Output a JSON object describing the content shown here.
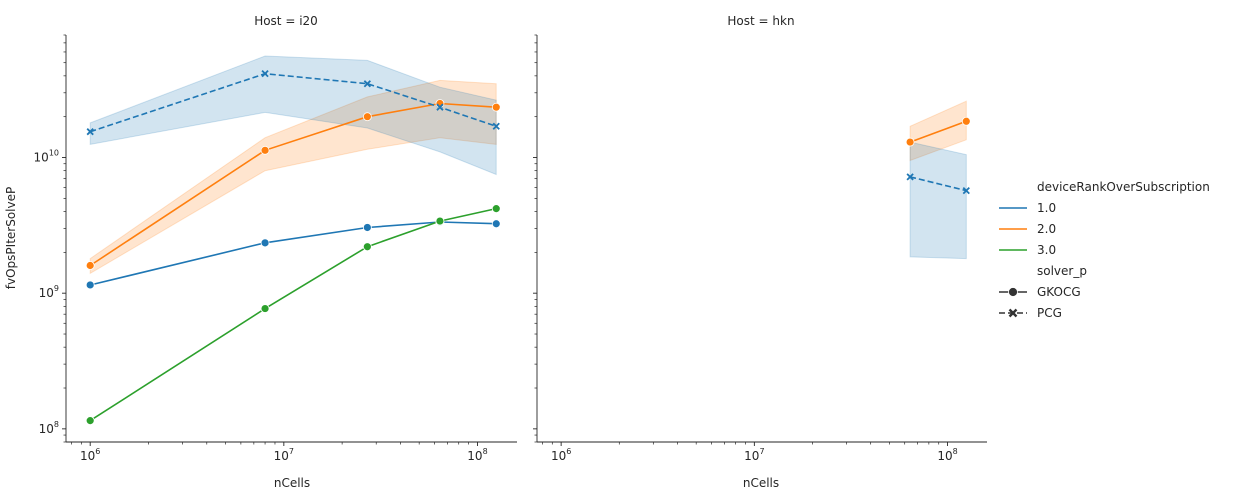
{
  "chart_data": [
    {
      "type": "line",
      "title": "Host = i20",
      "xlabel": "nCells",
      "ylabel": "fvOpsPIterSolveP",
      "xscale": "log",
      "yscale": "log",
      "xlim": [
        750000,
        160000000
      ],
      "ylim": [
        80000000,
        80000000000
      ],
      "x_ticks": [
        {
          "value": 1000000,
          "base": "10",
          "exp": "6"
        },
        {
          "value": 10000000,
          "base": "10",
          "exp": "7"
        },
        {
          "value": 100000000,
          "base": "10",
          "exp": "8"
        }
      ],
      "y_ticks": [
        {
          "value": 100000000,
          "base": "10",
          "exp": "8"
        },
        {
          "value": 1000000000,
          "base": "10",
          "exp": "9"
        },
        {
          "value": 10000000000,
          "base": "10",
          "exp": "10"
        }
      ],
      "series": [
        {
          "deviceRankOverSubscription": "1.0",
          "solver_p": "GKOCG",
          "x": [
            1000000,
            8000000,
            27000000,
            64000000,
            125000000
          ],
          "y": [
            1150000000,
            2350000000,
            3050000000,
            3350000000,
            3250000000
          ]
        },
        {
          "deviceRankOverSubscription": "2.0",
          "solver_p": "GKOCG",
          "x": [
            1000000,
            8000000,
            27000000,
            64000000,
            125000000
          ],
          "y": [
            1600000000,
            11300000000,
            20000000000,
            25000000000,
            23500000000
          ],
          "band_low": [
            1400000000,
            8000000000,
            11500000000,
            14000000000,
            12500000000
          ],
          "band_high": [
            1800000000,
            14000000000,
            28000000000,
            37000000000,
            35000000000
          ]
        },
        {
          "deviceRankOverSubscription": "3.0",
          "solver_p": "GKOCG",
          "x": [
            1000000,
            8000000,
            27000000,
            64000000,
            125000000
          ],
          "y": [
            115000000,
            770000000,
            2200000000,
            3400000000,
            4200000000
          ]
        },
        {
          "deviceRankOverSubscription": "1.0",
          "solver_p": "PCG",
          "x": [
            1000000,
            8000000,
            27000000,
            64000000,
            125000000
          ],
          "y": [
            15500000000,
            41500000000,
            35000000000,
            23500000000,
            17000000000
          ],
          "band_low": [
            12500000000,
            21500000000,
            16500000000,
            11000000000,
            7500000000
          ],
          "band_high": [
            18000000000,
            56000000000,
            52000000000,
            33000000000,
            26500000000
          ]
        }
      ]
    },
    {
      "type": "line",
      "title": "Host = hkn",
      "xlabel": "nCells",
      "ylabel": "",
      "xscale": "log",
      "yscale": "log",
      "xlim": [
        750000,
        160000000
      ],
      "ylim": [
        80000000,
        80000000000
      ],
      "x_ticks": [
        {
          "value": 1000000,
          "base": "10",
          "exp": "6"
        },
        {
          "value": 10000000,
          "base": "10",
          "exp": "7"
        },
        {
          "value": 100000000,
          "base": "10",
          "exp": "8"
        }
      ],
      "y_ticks": [],
      "series": [
        {
          "deviceRankOverSubscription": "2.0",
          "solver_p": "GKOCG",
          "x": [
            64000000,
            125000000
          ],
          "y": [
            13000000000,
            18500000000
          ],
          "band_low": [
            9500000000,
            13500000000
          ],
          "band_high": [
            17000000000,
            26000000000
          ]
        },
        {
          "deviceRankOverSubscription": "1.0",
          "solver_p": "PCG",
          "x": [
            64000000,
            125000000
          ],
          "y": [
            7200000000,
            5700000000
          ],
          "band_low": [
            1850000000,
            1800000000
          ],
          "band_high": [
            13000000000,
            10500000000
          ]
        }
      ]
    }
  ],
  "legend": {
    "placement": "right",
    "hue_title": "deviceRankOverSubscription",
    "hue_entries": [
      {
        "label": "1.0",
        "color": "#1f77b4"
      },
      {
        "label": "2.0",
        "color": "#ff7f0e"
      },
      {
        "label": "3.0",
        "color": "#2ca02c"
      }
    ],
    "style_title": "solver_p",
    "style_entries": [
      {
        "label": "GKOCG",
        "marker": "circle",
        "dash": "solid"
      },
      {
        "label": "PCG",
        "marker": "x",
        "dash": "dashed"
      }
    ]
  },
  "colors": {
    "1.0": "#1f77b4",
    "2.0": "#ff7f0e",
    "3.0": "#2ca02c"
  }
}
